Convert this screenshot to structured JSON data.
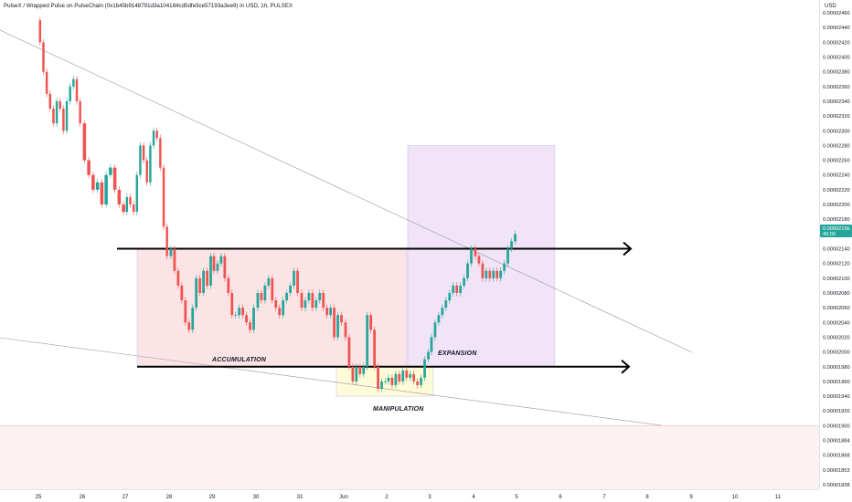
{
  "header": {
    "title": "PulseX / Wrapped Pulse on PulseChain (0x1b45b9148791d3a104184cd5dfe5ce57193a3ee9) in USD, 1h, PULSEX",
    "currency": "USD"
  },
  "current_price": {
    "label": "0.0000215b",
    "sub": "40:00",
    "color": "#26a69a"
  },
  "colors": {
    "up": "#26a69a",
    "down": "#ef5350",
    "accumulation": "#fbe4e6",
    "manipulation": "#fffbd9",
    "expansion": "#f1e4f7",
    "trendline": "#9598a1",
    "support_line": "#f28b95"
  },
  "annotations": {
    "accumulation": "ACCUMULATION",
    "manipulation": "MANIPULATION",
    "expansion": "EXPANSION"
  },
  "chart_data": {
    "type": "candlestick",
    "title": "PulseX / Wrapped Pulse on PulseChain (0x1b45b9148791d3a104184cd5dfe5ce57193a3ee9) in USD, 1h, PULSEX",
    "y_ticks": [
      "0.00002460",
      "0.00002440",
      "0.00002420",
      "0.00002400",
      "0.00002380",
      "0.00002360",
      "0.00002340",
      "0.00002320",
      "0.00002300",
      "0.00002280",
      "0.00002260",
      "0.00002240",
      "0.00002220",
      "0.00002200",
      "0.00002180",
      "0.00002160",
      "0.00002140",
      "0.00002120",
      "0.00002100",
      "0.00002080",
      "0.00002060",
      "0.00002040",
      "0.00002020",
      "0.00002000",
      "0.00001980",
      "0.00001960",
      "0.00001940",
      "0.00001920",
      "0.00001900",
      "0.00001884",
      "0.00001868",
      "0.00001853",
      "0.00001838"
    ],
    "x_ticks": [
      "25",
      "26",
      "27",
      "28",
      "29",
      "30",
      "31",
      "Jun",
      "2",
      "3",
      "4",
      "5",
      "6",
      "7",
      "8",
      "9",
      "10",
      "11"
    ],
    "x_range": [
      "2024-05-24T09:00",
      "2024-06-11T18:00"
    ],
    "series": [
      {
        "day": "25",
        "path": [
          2.45e-05,
          2.42e-05,
          2.38e-05,
          2.35e-05,
          2.33e-05,
          2.31e-05,
          2.34e-05,
          2.33e-05,
          2.3e-05,
          2.34e-05,
          2.36e-05,
          2.37e-05,
          2.34e-05,
          2.31e-05
        ]
      },
      {
        "day": "26",
        "path": [
          2.31e-05,
          2.26e-05,
          2.24e-05,
          2.22e-05,
          2.23e-05,
          2.2e-05,
          2.24e-05,
          2.25e-05,
          2.22e-05,
          2.2e-05,
          2.19e-05
        ]
      },
      {
        "day": "27",
        "path": [
          2.19e-05,
          2.21e-05,
          2.2e-05,
          2.19e-05,
          2.24e-05,
          2.28e-05,
          2.26e-05,
          2.23e-05,
          2.28e-05,
          2.3e-05,
          2.29e-05,
          2.25e-05,
          2.17e-05,
          2.13e-05
        ]
      },
      {
        "day": "28",
        "path": [
          2.13e-05,
          2.14e-05,
          2.11e-05,
          2.09e-05,
          2.07e-05,
          2.04e-05,
          2.03e-05,
          2.06e-05,
          2.1e-05,
          2.08e-05,
          2.11e-05,
          2.09e-05,
          2.13e-05
        ]
      },
      {
        "day": "29",
        "path": [
          2.13e-05,
          2.11e-05,
          2.12e-05,
          2.13e-05,
          2.1e-05,
          2.08e-05,
          2.05e-05,
          2.05e-05,
          2.06e-05,
          2.05e-05,
          2.04e-05,
          2.03e-05,
          2.06e-05
        ]
      },
      {
        "day": "30",
        "path": [
          2.06e-05,
          2.08e-05,
          2.07e-05,
          2.09e-05,
          2.1e-05,
          2.07e-05,
          2.06e-05,
          2.05e-05,
          2.07e-05,
          2.08e-05,
          2.09e-05,
          2.11e-05,
          2.08e-05
        ]
      },
      {
        "day": "31",
        "path": [
          2.08e-05,
          2.06e-05,
          2.07e-05,
          2.08e-05,
          2.06e-05,
          2.07e-05,
          2.08e-05,
          2.06e-05,
          2.05e-05,
          2.06e-05,
          2.02e-05,
          2.05e-05,
          2.04e-05
        ]
      },
      {
        "day": "Jun",
        "path": [
          2.04e-05,
          2.02e-05,
          1.98e-05,
          1.96e-05,
          1.98e-05,
          1.97e-05,
          1.98e-05,
          2.05e-05,
          2.03e-05,
          1.98e-05,
          1.95e-05,
          1.96e-05,
          1.96e-05
        ]
      },
      {
        "day": "2",
        "path": [
          1.96e-05,
          1.965e-05,
          1.955e-05,
          1.97e-05,
          1.96e-05,
          1.975e-05,
          1.965e-05,
          1.97e-05,
          1.96e-05,
          1.955e-05,
          1.965e-05,
          1.99e-05,
          2e-05
        ]
      },
      {
        "day": "3",
        "path": [
          2e-05,
          2.02e-05,
          2.04e-05,
          2.05e-05,
          2.06e-05,
          2.07e-05,
          2.08e-05,
          2.09e-05,
          2.08e-05,
          2.09e-05,
          2.1e-05,
          2.12e-05,
          2.14e-05
        ]
      },
      {
        "day": "4",
        "path": [
          2.14e-05,
          2.13e-05,
          2.12e-05,
          2.1e-05,
          2.11e-05,
          2.1e-05,
          2.11e-05,
          2.1e-05,
          2.11e-05,
          2.12e-05,
          2.14e-05,
          2.15e-05,
          2.16e-05
        ]
      }
    ],
    "drawings": {
      "accumulation_box": {
        "from": "27",
        "to": "2",
        "y": [
          1.98e-05,
          2.14e-05
        ]
      },
      "manipulation_box": {
        "from": "Jun",
        "to": "2",
        "y": [
          1.94e-05,
          1.98e-05
        ]
      },
      "expansion_box": {
        "from": "2",
        "to": "5",
        "y": [
          1.98e-05,
          2.28e-05
        ]
      },
      "horizontal_level_top": 2.14e-05,
      "horizontal_level_bottom": 1.98e-05,
      "support_level": 1.9e-05
    },
    "grid": false
  }
}
